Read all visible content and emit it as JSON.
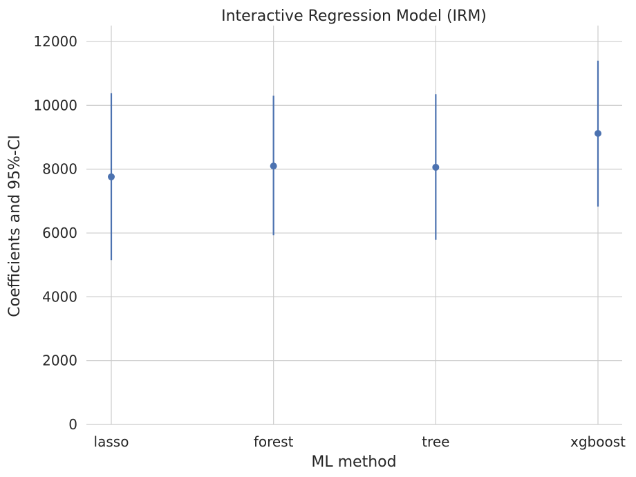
{
  "chart_data": {
    "type": "scatter",
    "title": "Interactive Regression Model (IRM)",
    "xlabel": "ML method",
    "ylabel": "Coefficients and 95%-CI",
    "categories": [
      "lasso",
      "forest",
      "tree",
      "xgboost"
    ],
    "series": [
      {
        "values": [
          7760,
          8100,
          8060,
          9120
        ],
        "ci_lower": [
          5150,
          5930,
          5790,
          6830
        ],
        "ci_upper": [
          10380,
          10300,
          10350,
          11400
        ]
      }
    ],
    "yticks": [
      "0",
      "2000",
      "4000",
      "6000",
      "8000",
      "10000",
      "12000"
    ],
    "ylim": [
      0,
      12500
    ],
    "grid": true,
    "color": "#4c72b0",
    "grid_color": "#cccccc"
  }
}
